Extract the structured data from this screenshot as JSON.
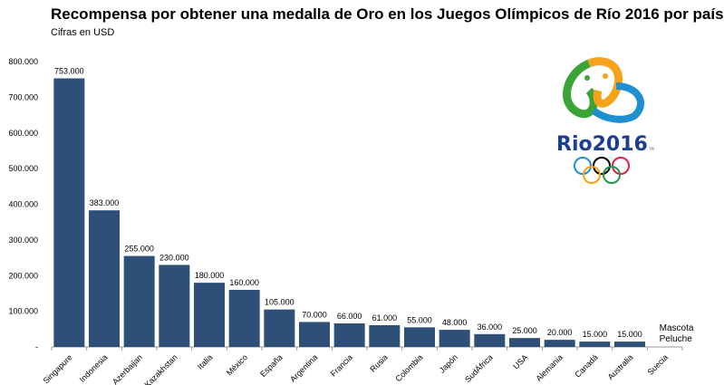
{
  "chart_data": {
    "type": "bar",
    "title": "Recompensa por obtener una medalla de Oro en los Juegos Olímpicos de Río 2016 por país",
    "subtitle": "Cifras en USD",
    "categories": [
      "Singapure",
      "Indonesia",
      "Azerbaijan",
      "Kazakhstan",
      "Italia",
      "México",
      "España",
      "Argentina",
      "Francia",
      "Rusia",
      "Colombia",
      "Japón",
      "SudÁfrica",
      "USA",
      "Alemania",
      "Canadá",
      "Australia",
      "Suecia"
    ],
    "values": [
      753000,
      383000,
      255000,
      230000,
      180000,
      160000,
      105000,
      70000,
      66000,
      61000,
      55000,
      48000,
      36000,
      25000,
      20000,
      15000,
      15000,
      null
    ],
    "data_labels": [
      "753.000",
      "383.000",
      "255.000",
      "230.000",
      "180.000",
      "160.000",
      "105.000",
      "70.000",
      "66.000",
      "61.000",
      "55.000",
      "48.000",
      "36.000",
      "25.000",
      "20.000",
      "15.000",
      "15.000",
      "Mascota Peluche"
    ],
    "yticks": [
      "-",
      "100.000",
      "200.000",
      "300.000",
      "400.000",
      "500.000",
      "600.000",
      "700.000",
      "800.000"
    ],
    "ylim": [
      0,
      800000
    ],
    "grid": false,
    "bar_color": "#2e5078"
  },
  "logo": {
    "text": "Rio2016",
    "tm": "TM"
  }
}
